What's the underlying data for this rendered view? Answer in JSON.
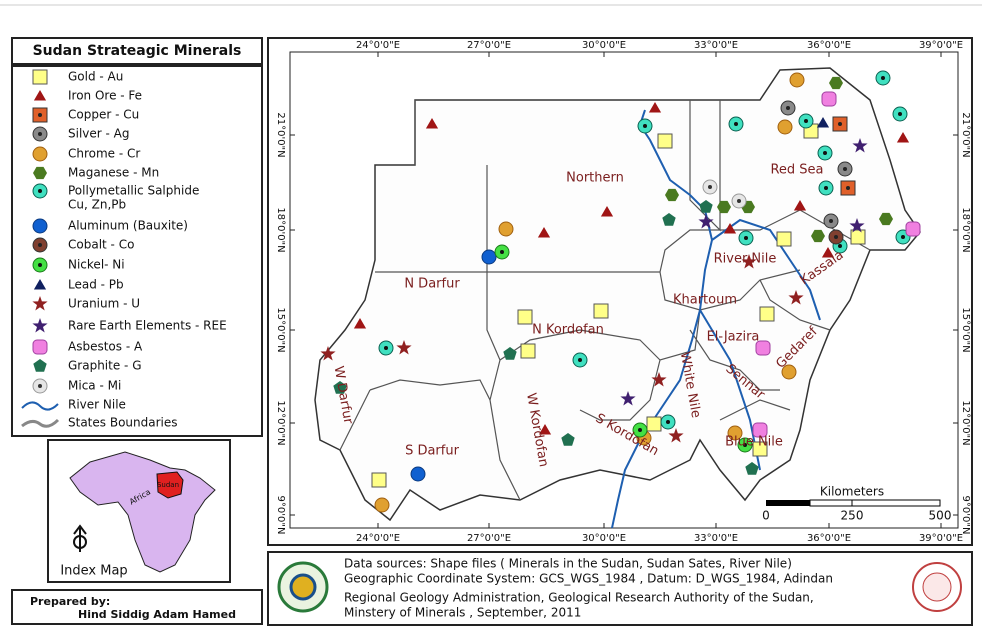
{
  "title": "Sudan Strateagic Minerals",
  "legend": {
    "items": [
      {
        "label": "Gold - Au"
      },
      {
        "label": "Iron Ore - Fe"
      },
      {
        "label": "Copper - Cu"
      },
      {
        "label": "Silver - Ag"
      },
      {
        "label": "Chrome - Cr"
      },
      {
        "label": "Maganese - Mn"
      },
      {
        "label": "Pollymetallic Salphide",
        "sublabel": "Cu, Zn,Pb"
      },
      {
        "label": "Aluminum (Bauxite)"
      },
      {
        "label": "Cobalt - Co"
      },
      {
        "label": "Nickel- Ni"
      },
      {
        "label": "Lead - Pb"
      },
      {
        "label": "Uranium - U"
      },
      {
        "label": "Rare Earth Elements - REE"
      },
      {
        "label": "Asbestos - A"
      },
      {
        "label": "Graphite - G"
      },
      {
        "label": "Mica - Mi"
      },
      {
        "label": "River Nile"
      },
      {
        "label": "States Boundaries"
      }
    ]
  },
  "index_map": {
    "country": "Sudan",
    "continent": "Africa",
    "caption": "Index Map"
  },
  "prepared_by": {
    "heading": "Prepared by:",
    "name": "Hind Siddig Adam Hamed"
  },
  "map": {
    "lon_labels": [
      "24°0'0\"E",
      "27°0'0\"E",
      "30°0'0\"E",
      "33°0'0\"E",
      "36°0'0\"E",
      "39°0'0\"E"
    ],
    "lat_labels": [
      "21°0'0\"N",
      "18°0'0\"N",
      "15°0'0\"N",
      "12°0'0\"N",
      "9°0'0\"N"
    ],
    "states": [
      "Northern",
      "Red Sea",
      "River Nile",
      "N Darfur",
      "N Kordofan",
      "Khartoum",
      "Kassala",
      "Gedaref",
      "El-Jazira",
      "Sennar",
      "White Nile",
      "W Darfur",
      "W Kordofan",
      "S Kordofan",
      "S Darfur",
      "Blue Nile"
    ],
    "scale": {
      "title": "Kilometers",
      "labels": [
        "0",
        "250",
        "500"
      ]
    }
  },
  "info": [
    "Data sources:  Shape files ( Minerals in the Sudan, Sudan Sates, River Nile)",
    "Geographic Coordinate System: GCS_WGS_1984 , Datum: D_WGS_1984, Adindan",
    "Regional Geology Administration, Geological Research Authority of the Sudan,",
    "Minstery of Minerals , September, 2011"
  ]
}
